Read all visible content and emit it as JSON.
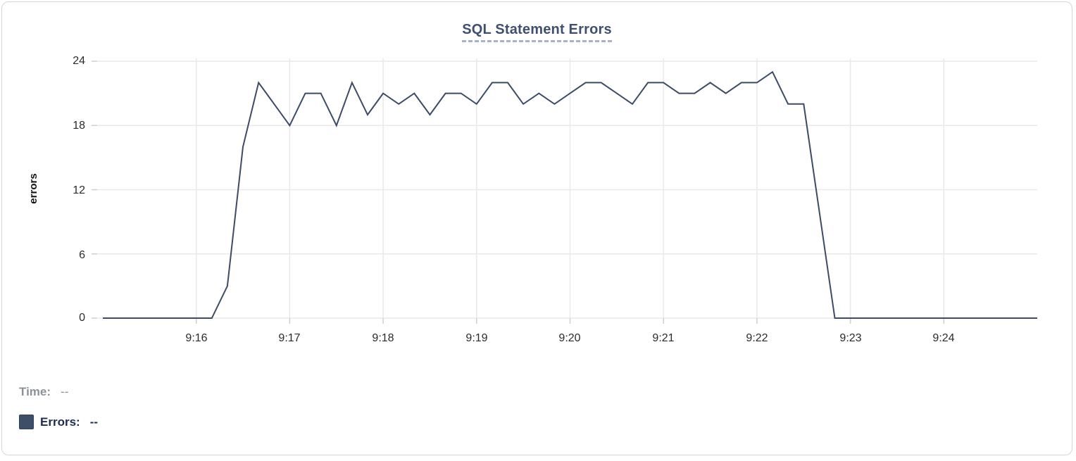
{
  "panel": {
    "title": "SQL Statement Errors"
  },
  "legend": {
    "time_label": "Time:",
    "time_value": "--",
    "errors_label": "Errors:",
    "errors_value": "--"
  },
  "colors": {
    "series_line": "#3c4b66",
    "legend_swatch": "#3e4d68",
    "title_text": "#3f4f6f",
    "title_underline": "#a8b2cb",
    "grid_line": "#e9e9e9",
    "axis_tick": "#cfcfcf",
    "tick_label_text": "#2b2b2b",
    "time_text": "#8c9199",
    "errors_text": "#1c2b51",
    "panel_border": "#d6d6d6"
  },
  "chart_data": {
    "type": "line",
    "title": "SQL Statement Errors",
    "grid": true,
    "legend_position": "bottom-left",
    "x_axis": {
      "start": "9:15:00",
      "end": "9:25:00",
      "tick_labels": [
        "9:16",
        "9:17",
        "9:18",
        "9:19",
        "9:20",
        "9:21",
        "9:22",
        "9:23",
        "9:24"
      ]
    },
    "y_axis": {
      "label": "errors",
      "min": 0,
      "max": 24,
      "ticks": [
        0,
        6,
        12,
        18,
        24
      ]
    },
    "series": [
      {
        "name": "Errors",
        "color": "#3c4b66",
        "times": [
          "9:15:00",
          "9:15:10",
          "9:15:20",
          "9:15:30",
          "9:15:40",
          "9:15:50",
          "9:16:00",
          "9:16:10",
          "9:16:20",
          "9:16:30",
          "9:16:40",
          "9:16:50",
          "9:17:00",
          "9:17:10",
          "9:17:20",
          "9:17:30",
          "9:17:40",
          "9:17:50",
          "9:18:00",
          "9:18:10",
          "9:18:20",
          "9:18:30",
          "9:18:40",
          "9:18:50",
          "9:19:00",
          "9:19:10",
          "9:19:20",
          "9:19:30",
          "9:19:40",
          "9:19:50",
          "9:20:00",
          "9:20:10",
          "9:20:20",
          "9:20:30",
          "9:20:40",
          "9:20:50",
          "9:21:00",
          "9:21:10",
          "9:21:20",
          "9:21:30",
          "9:21:40",
          "9:21:50",
          "9:22:00",
          "9:22:10",
          "9:22:20",
          "9:22:30",
          "9:22:40",
          "9:22:50",
          "9:23:00",
          "9:23:10",
          "9:23:20",
          "9:23:30",
          "9:23:40",
          "9:23:50",
          "9:24:00",
          "9:24:10",
          "9:24:20",
          "9:24:30",
          "9:24:40",
          "9:24:50",
          "9:25:00"
        ],
        "values": [
          0,
          0,
          0,
          0,
          0,
          0,
          0,
          0,
          3,
          16,
          22,
          20,
          18,
          21,
          21,
          18,
          22,
          19,
          21,
          20,
          21,
          19,
          21,
          21,
          20,
          22,
          22,
          20,
          21,
          20,
          21,
          22,
          22,
          21,
          20,
          22,
          22,
          21,
          21,
          22,
          21,
          22,
          22,
          23,
          20,
          20,
          10,
          0,
          0,
          0,
          0,
          0,
          0,
          0,
          0,
          0,
          0,
          0,
          0,
          0,
          0
        ]
      }
    ]
  }
}
